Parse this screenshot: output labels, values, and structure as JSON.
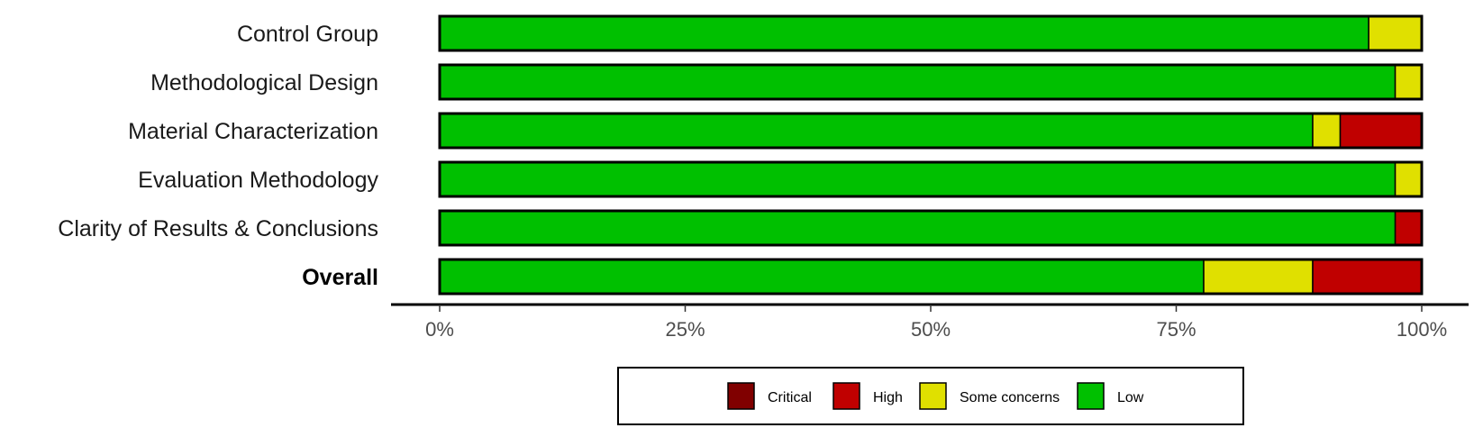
{
  "chart_data": {
    "type": "bar",
    "orientation": "horizontal",
    "stacked": true,
    "x_format": "percent",
    "xlim": [
      0,
      100
    ],
    "x_ticks": [
      "0%",
      "25%",
      "50%",
      "75%",
      "100%"
    ],
    "categories": [
      "Control Group",
      "Methodological Design",
      "Material Characterization",
      "Evaluation Methodology",
      "Clarity of Results & Conclusions",
      "Overall"
    ],
    "bold_categories": [
      "Overall"
    ],
    "series": [
      {
        "name": "Low",
        "color": "#00c000",
        "values": [
          94.6,
          97.3,
          88.9,
          97.3,
          97.3,
          77.8
        ]
      },
      {
        "name": "Some concerns",
        "color": "#e0e000",
        "values": [
          5.4,
          2.7,
          2.8,
          2.7,
          0,
          11.1
        ]
      },
      {
        "name": "High",
        "color": "#c00000",
        "values": [
          0,
          0,
          8.3,
          0,
          2.7,
          11.1
        ]
      },
      {
        "name": "Critical",
        "color": "#800000",
        "values": [
          0,
          0,
          0,
          0,
          0,
          0
        ]
      }
    ],
    "legend": {
      "position": "bottom",
      "order": [
        "Critical",
        "High",
        "Some concerns",
        "Low"
      ]
    },
    "title": "",
    "xlabel": "",
    "ylabel": ""
  }
}
